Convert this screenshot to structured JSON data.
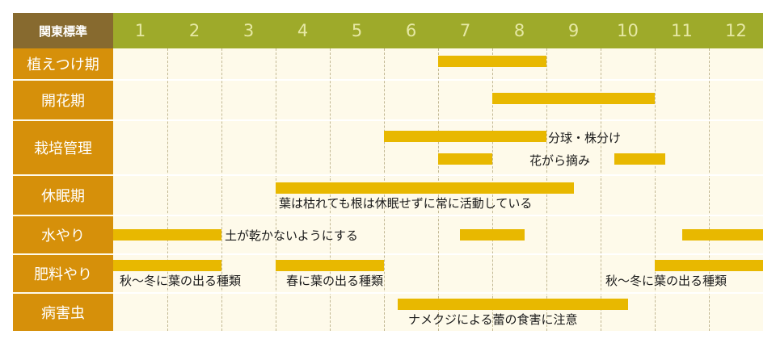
{
  "corner_label": "関東標準",
  "months": [
    "1",
    "2",
    "3",
    "4",
    "5",
    "6",
    "7",
    "8",
    "9",
    "10",
    "11",
    "12"
  ],
  "rows": [
    {
      "label": "植えつけ期"
    },
    {
      "label": "開花期"
    },
    {
      "label": "栽培管理"
    },
    {
      "label": "休眠期"
    },
    {
      "label": "水やり"
    },
    {
      "label": "肥料やり"
    },
    {
      "label": "病害虫"
    }
  ],
  "notes": {
    "division": "分球・株分け",
    "deadheading": "花がら摘み",
    "dormancy": "葉は枯れても根は休眠せずに常に活動している",
    "water_summer": "土が乾かないようにする",
    "fert_autumn_1": "秋〜冬に葉の出る種類",
    "fert_spring": "春に葉の出る種類",
    "fert_autumn_2": "秋〜冬に葉の出る種類",
    "pests": "ナメクジによる蕾の食害に注意"
  },
  "colors": {
    "header_bg": "#9eaa2a",
    "corner_bg": "#876a2f",
    "label_bg": "#d6900a",
    "grid_bg": "#fefaea",
    "bar": "#e8b800"
  },
  "chart_data": {
    "type": "gantt",
    "x_unit": "month",
    "categories": [
      "植えつけ期",
      "開花期",
      "栽培管理",
      "休眠期",
      "水やり",
      "肥料やり",
      "病害虫"
    ],
    "tasks": [
      {
        "row": "植えつけ期",
        "start_month": 7.0,
        "end_month": 9.0
      },
      {
        "row": "開花期",
        "start_month": 8.0,
        "end_month": 11.0
      },
      {
        "row": "栽培管理",
        "start_month": 6.0,
        "end_month": 9.0,
        "label": "分球・株分け"
      },
      {
        "row": "栽培管理",
        "start_month": 7.0,
        "end_month": 8.0,
        "label": "花がら摘み"
      },
      {
        "row": "栽培管理",
        "start_month": 10.25,
        "end_month": 11.2,
        "label": "花がら摘み"
      },
      {
        "row": "休眠期",
        "start_month": 4.0,
        "end_month": 9.5,
        "label": "葉は枯れても根は休眠せずに常に活動している"
      },
      {
        "row": "水やり",
        "start_month": 1.0,
        "end_month": 3.0,
        "label": "土が乾かないようにする"
      },
      {
        "row": "水やり",
        "start_month": 7.4,
        "end_month": 8.6
      },
      {
        "row": "水やり",
        "start_month": 11.5,
        "end_month": 13.0
      },
      {
        "row": "肥料やり",
        "start_month": 1.0,
        "end_month": 3.0,
        "label": "秋〜冬に葉の出る種類"
      },
      {
        "row": "肥料やり",
        "start_month": 4.0,
        "end_month": 6.0,
        "label": "春に葉の出る種類"
      },
      {
        "row": "肥料やり",
        "start_month": 11.0,
        "end_month": 13.0,
        "label": "秋〜冬に葉の出る種類"
      },
      {
        "row": "病害虫",
        "start_month": 6.25,
        "end_month": 10.5,
        "label": "ナメクジによる蕾の食害に注意"
      }
    ]
  }
}
